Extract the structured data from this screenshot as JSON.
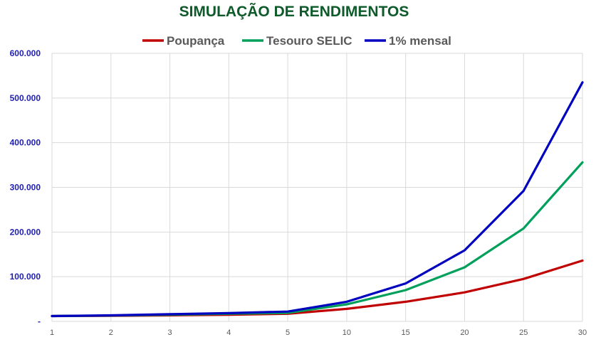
{
  "chart_data": {
    "type": "line",
    "title": "SIMULAÇÃO DE RENDIMENTOS",
    "xlabel": "",
    "ylabel": "",
    "categories": [
      "1",
      "2",
      "3",
      "4",
      "5",
      "10",
      "15",
      "20",
      "25",
      "30"
    ],
    "ylim": [
      0,
      600000
    ],
    "yticks": [
      {
        "value": 0,
        "label": "-"
      },
      {
        "value": 100000,
        "label": "100.000"
      },
      {
        "value": 200000,
        "label": "200.000"
      },
      {
        "value": 300000,
        "label": "300.000"
      },
      {
        "value": 400000,
        "label": "400.000"
      },
      {
        "value": 500000,
        "label": "500.000"
      },
      {
        "value": 600000,
        "label": "600.000"
      }
    ],
    "grid": true,
    "legend_position": "top",
    "series": [
      {
        "name": "Poupança",
        "color": "#c00000",
        "values": [
          12000,
          12500,
          13500,
          15000,
          17000,
          28000,
          44000,
          65000,
          95000,
          136000
        ]
      },
      {
        "name": "Tesouro SELIC",
        "color": "#00a05a",
        "values": [
          12000,
          13000,
          15000,
          17000,
          19000,
          38000,
          70000,
          121000,
          208000,
          356000
        ]
      },
      {
        "name": "1% mensal",
        "color": "#0000c0",
        "values": [
          12000,
          13500,
          16000,
          18500,
          22000,
          44000,
          85000,
          159000,
          292000,
          535000
        ]
      }
    ],
    "colors": {
      "title": "#0e5a2a",
      "ytick": "#1f1fb4",
      "grid": "#d9d9d9"
    }
  }
}
